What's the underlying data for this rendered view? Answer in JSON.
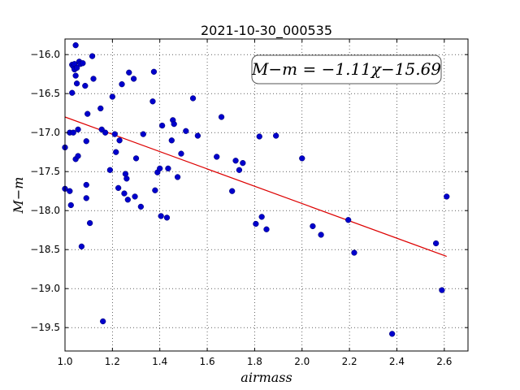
{
  "chart_data": {
    "type": "scatter",
    "title": "2021-10-30_000535",
    "xlabel": "airmass",
    "ylabel": "M−m",
    "xlim": [
      1.0,
      2.7
    ],
    "ylim": [
      -19.8,
      -15.8
    ],
    "y_inverted": true,
    "grid": true,
    "xticks": [
      1.0,
      1.2,
      1.4,
      1.6,
      1.8,
      2.0,
      2.2,
      2.4,
      2.6
    ],
    "xtick_labels": [
      "1.0",
      "1.2",
      "1.4",
      "1.6",
      "1.8",
      "2.0",
      "2.2",
      "2.4",
      "2.6"
    ],
    "yticks": [
      -16.0,
      -16.5,
      -17.0,
      -17.5,
      -18.0,
      -18.5,
      -19.0,
      -19.5
    ],
    "ytick_labels": [
      "−16.0",
      "−16.5",
      "−17.0",
      "−17.5",
      "−18.0",
      "−18.5",
      "−19.0",
      "−19.5"
    ],
    "annotation": "M−m = −1.11χ−15.69",
    "marker_color": "#0000cc",
    "fit_color": "#dd0000",
    "fit": {
      "slope": -1.11,
      "intercept": -15.69,
      "x_range": [
        1.0,
        2.61
      ]
    },
    "points": [
      [
        1.0,
        -17.19
      ],
      [
        1.0,
        -17.72
      ],
      [
        1.02,
        -17.0
      ],
      [
        1.02,
        -17.75
      ],
      [
        1.025,
        -17.93
      ],
      [
        1.03,
        -16.13
      ],
      [
        1.03,
        -16.49
      ],
      [
        1.035,
        -16.15
      ],
      [
        1.035,
        -17.0
      ],
      [
        1.04,
        -16.12
      ],
      [
        1.04,
        -16.19
      ],
      [
        1.045,
        -15.88
      ],
      [
        1.045,
        -16.27
      ],
      [
        1.045,
        -17.34
      ],
      [
        1.05,
        -16.37
      ],
      [
        1.05,
        -16.17
      ],
      [
        1.055,
        -16.96
      ],
      [
        1.055,
        -17.3
      ],
      [
        1.06,
        -16.09
      ],
      [
        1.065,
        -16.12
      ],
      [
        1.07,
        -18.46
      ],
      [
        1.075,
        -16.11
      ],
      [
        1.085,
        -16.4
      ],
      [
        1.09,
        -17.11
      ],
      [
        1.09,
        -17.67
      ],
      [
        1.09,
        -17.84
      ],
      [
        1.095,
        -16.76
      ],
      [
        1.105,
        -18.16
      ],
      [
        1.115,
        -16.02
      ],
      [
        1.12,
        -16.31
      ],
      [
        1.15,
        -16.69
      ],
      [
        1.155,
        -16.96
      ],
      [
        1.16,
        -19.42
      ],
      [
        1.17,
        -17.0
      ],
      [
        1.19,
        -17.48
      ],
      [
        1.2,
        -16.54
      ],
      [
        1.21,
        -17.02
      ],
      [
        1.215,
        -17.25
      ],
      [
        1.225,
        -17.71
      ],
      [
        1.23,
        -17.1
      ],
      [
        1.24,
        -16.38
      ],
      [
        1.25,
        -17.78
      ],
      [
        1.255,
        -17.53
      ],
      [
        1.26,
        -17.59
      ],
      [
        1.265,
        -17.86
      ],
      [
        1.27,
        -16.23
      ],
      [
        1.29,
        -16.31
      ],
      [
        1.295,
        -17.82
      ],
      [
        1.3,
        -17.33
      ],
      [
        1.32,
        -17.95
      ],
      [
        1.33,
        -17.02
      ],
      [
        1.37,
        -16.6
      ],
      [
        1.375,
        -16.22
      ],
      [
        1.38,
        -17.74
      ],
      [
        1.39,
        -17.51
      ],
      [
        1.4,
        -17.46
      ],
      [
        1.405,
        -18.07
      ],
      [
        1.41,
        -16.91
      ],
      [
        1.43,
        -18.09
      ],
      [
        1.435,
        -17.46
      ],
      [
        1.45,
        -17.1
      ],
      [
        1.455,
        -16.84
      ],
      [
        1.46,
        -16.89
      ],
      [
        1.475,
        -17.57
      ],
      [
        1.49,
        -17.27
      ],
      [
        1.51,
        -16.98
      ],
      [
        1.54,
        -16.56
      ],
      [
        1.56,
        -17.04
      ],
      [
        1.64,
        -17.31
      ],
      [
        1.66,
        -16.8
      ],
      [
        1.705,
        -17.75
      ],
      [
        1.72,
        -17.36
      ],
      [
        1.735,
        -17.48
      ],
      [
        1.75,
        -17.39
      ],
      [
        1.805,
        -18.17
      ],
      [
        1.82,
        -17.05
      ],
      [
        1.83,
        -18.08
      ],
      [
        1.85,
        -18.24
      ],
      [
        1.89,
        -17.04
      ],
      [
        2.0,
        -17.33
      ],
      [
        2.045,
        -18.2
      ],
      [
        2.08,
        -18.31
      ],
      [
        2.195,
        -18.12
      ],
      [
        2.22,
        -18.54
      ],
      [
        2.38,
        -19.58
      ],
      [
        2.565,
        -18.42
      ],
      [
        2.59,
        -19.02
      ],
      [
        2.61,
        -17.82
      ]
    ]
  }
}
